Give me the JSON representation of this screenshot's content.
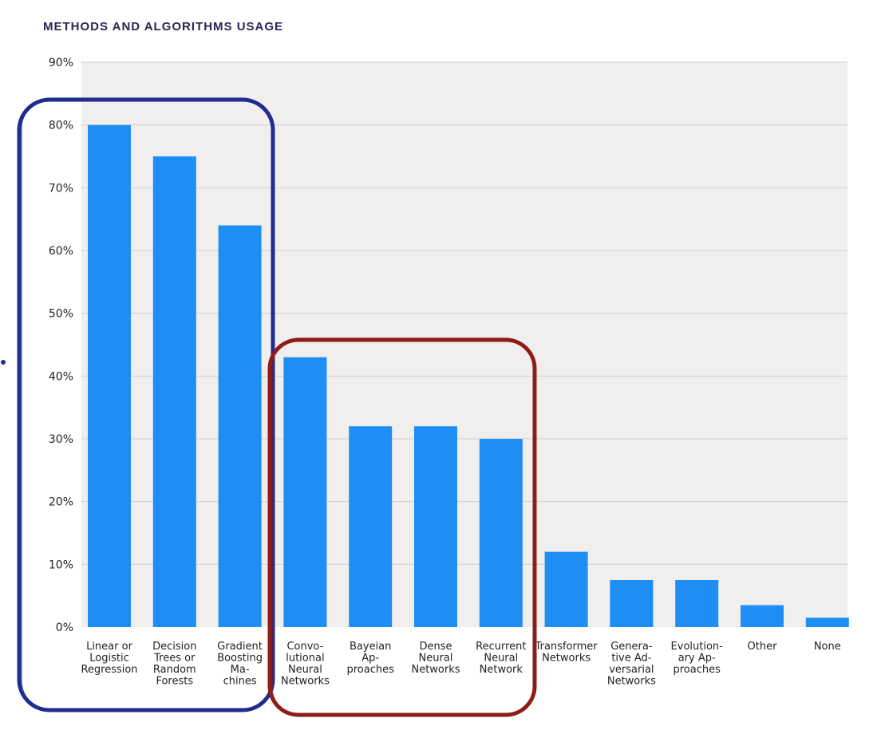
{
  "title": "METHODS AND ALGORITHMS USAGE",
  "colors": {
    "bar": "#1e8ef5",
    "plot_bg": "#f0efee",
    "grid": "#cfcfcf",
    "highlight_group_1": "#1f2d8e",
    "highlight_group_2": "#8e1d18"
  },
  "chart_data": {
    "type": "bar",
    "title": "METHODS AND ALGORITHMS USAGE",
    "xlabel": "",
    "ylabel": "",
    "ylim": [
      0,
      90
    ],
    "yticks": [
      0,
      10,
      20,
      30,
      40,
      50,
      60,
      70,
      80,
      90
    ],
    "ytick_labels": [
      "0%",
      "10%",
      "20%",
      "30%",
      "40%",
      "50%",
      "60%",
      "70%",
      "80%",
      "90%"
    ],
    "grid": true,
    "categories": [
      [
        "Linear or",
        "Logistic",
        "Regression"
      ],
      [
        "Decision",
        "Trees or",
        "Random",
        "Forests"
      ],
      [
        "Gradient",
        "Boosting",
        "Ma-",
        "chines"
      ],
      [
        "Convo-",
        "lutional",
        "Neural",
        "Networks"
      ],
      [
        "Bayeian",
        "Ap-",
        "proaches"
      ],
      [
        "Dense",
        "Neural",
        "Networks"
      ],
      [
        "Recurrent",
        "Neural",
        "Network"
      ],
      [
        "Transformer",
        "Networks"
      ],
      [
        "Genera-",
        "tive Ad-",
        "versarial",
        "Networks"
      ],
      [
        "Evolution-",
        "ary Ap-",
        "proaches"
      ],
      [
        "Other"
      ],
      [
        "None"
      ]
    ],
    "values": [
      80,
      75,
      64,
      43,
      32,
      32,
      30,
      12,
      7.5,
      7.5,
      3.5,
      1.5
    ],
    "highlight_groups": [
      {
        "start": 0,
        "end": 2
      },
      {
        "start": 3,
        "end": 6
      }
    ]
  }
}
